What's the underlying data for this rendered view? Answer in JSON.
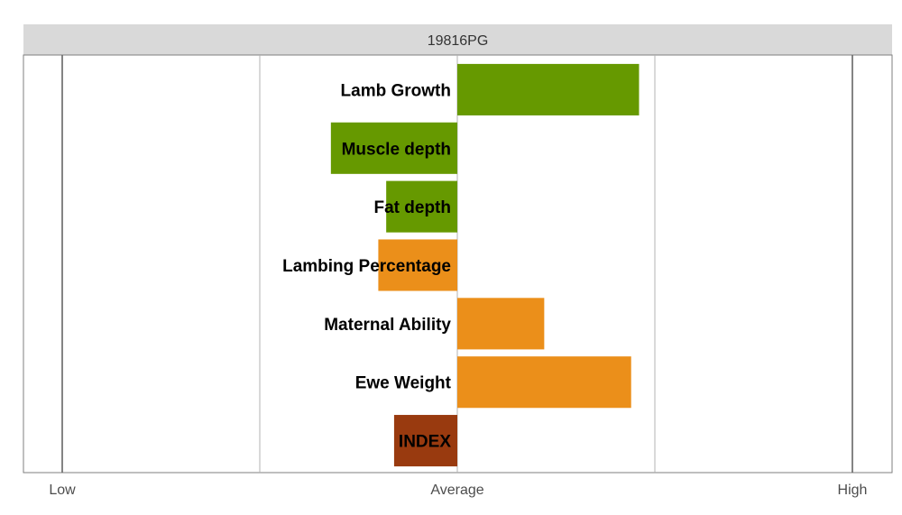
{
  "chart_data": {
    "type": "bar",
    "orientation": "horizontal",
    "title": "19816PG",
    "xlim": [
      -2,
      2
    ],
    "x_ticks": [
      {
        "value": -2,
        "label": "Low"
      },
      {
        "value": 0,
        "label": "Average"
      },
      {
        "value": 2,
        "label": "High"
      }
    ],
    "gridlines": [
      -2,
      -1,
      0,
      1,
      2
    ],
    "legend": "none",
    "categories": [
      "Lamb Growth",
      "Muscle depth",
      "Fat depth",
      "Lambing Percentage",
      "Maternal Ability",
      "Ewe Weight",
      "INDEX"
    ],
    "values": [
      0.92,
      -0.64,
      -0.36,
      -0.4,
      0.44,
      0.88,
      -0.32
    ],
    "bar_colors": [
      "#669900",
      "#669900",
      "#669900",
      "#EB8F1A",
      "#EB8F1A",
      "#EB8F1A",
      "#993A0F"
    ]
  }
}
